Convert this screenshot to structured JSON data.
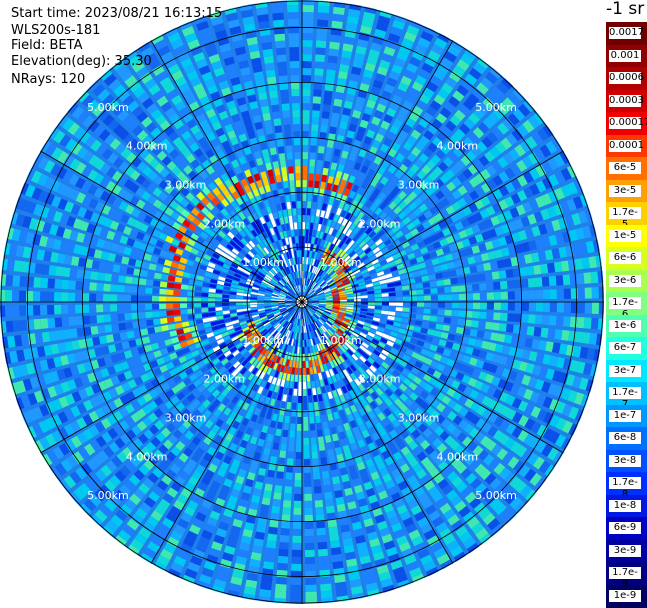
{
  "header": {
    "start_time": "Start time: 2023/08/21 16:13:15",
    "instrument": "WLS200s-181",
    "field": "Field: BETA",
    "elevation": "Elevation(deg): 35.30",
    "nrays": "NRays: 120"
  },
  "colorbar": {
    "title": "-1 sr",
    "labels": [
      "0.0017",
      "0.001",
      "0.0006",
      "0.0003",
      "0.00017",
      "0.0001",
      "6e-5",
      "3e-5",
      "1.7e-5",
      "1e-5",
      "6e-6",
      "3e-6",
      "1.7e-6",
      "1e-6",
      "6e-7",
      "3e-7",
      "1.7e-7",
      "1e-7",
      "6e-8",
      "3e-8",
      "1.7e-8",
      "1e-8",
      "6e-9",
      "3e-9",
      "1.7e-9",
      "1e-9"
    ],
    "colors": [
      "#700000",
      "#900000",
      "#b00000",
      "#d00000",
      "#f00000",
      "#ff3800",
      "#ff7000",
      "#ffa000",
      "#ffd000",
      "#ffff00",
      "#d8ff20",
      "#a8ff50",
      "#80ff80",
      "#50ffb0",
      "#20ffe0",
      "#00e8ff",
      "#00c0ff",
      "#0098ff",
      "#0070ff",
      "#0050ff",
      "#0030ff",
      "#0018e0",
      "#0000c0",
      "#0000a0",
      "#000080",
      "#000060"
    ]
  },
  "chart_data": {
    "type": "heatmap",
    "subtype": "polar-ppi",
    "nrays": 120,
    "range_unit": "km",
    "max_range_km": 5.5,
    "range_rings_km": [
      1,
      2,
      3,
      4,
      5
    ],
    "ring_labels": [
      "1.00km",
      "2.00km",
      "3.00km",
      "4.00km",
      "5.00km"
    ],
    "azimuth_lines_deg": [
      0,
      30,
      60,
      90,
      120,
      150,
      180,
      210,
      240,
      270,
      300,
      330
    ],
    "background_level": "3e-8",
    "colorscale": "log",
    "color_min": "1e-9",
    "color_max": "0.0017"
  }
}
